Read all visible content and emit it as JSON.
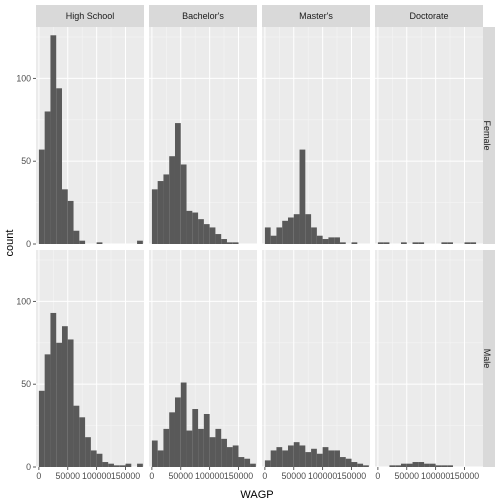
{
  "chart_data": {
    "type": "histogram",
    "xlabel": "WAGP",
    "ylabel": "count",
    "column_facets": [
      "High School",
      "Bachelor's",
      "Master's",
      "Doctorate"
    ],
    "row_facets": [
      "Female",
      "Male"
    ],
    "xlim": [
      -5000,
      182000
    ],
    "ylim": [
      0,
      131
    ],
    "x_ticks": [
      0,
      50000,
      100000,
      150000
    ],
    "x_tick_labels": [
      "0",
      "50000",
      "100000",
      "150000"
    ],
    "y_ticks": [
      0,
      50,
      100
    ],
    "y_tick_labels": [
      "0",
      "50",
      "100"
    ],
    "bin_width": 10000,
    "bin_starts": [
      0,
      10000,
      20000,
      30000,
      40000,
      50000,
      60000,
      70000,
      80000,
      90000,
      100000,
      110000,
      120000,
      130000,
      140000,
      150000,
      160000,
      170000
    ],
    "panels": [
      {
        "row": "Female",
        "col": "High School",
        "counts": [
          57,
          80,
          126,
          94,
          33,
          26,
          8,
          2,
          0,
          0,
          1,
          0,
          0,
          0,
          0,
          0,
          0,
          2
        ]
      },
      {
        "row": "Female",
        "col": "Bachelor's",
        "counts": [
          33,
          38,
          42,
          53,
          73,
          48,
          20,
          19,
          15,
          12,
          10,
          6,
          3,
          1,
          1,
          0,
          0,
          0
        ]
      },
      {
        "row": "Female",
        "col": "Master's",
        "counts": [
          10,
          5,
          10,
          14,
          16,
          18,
          57,
          18,
          10,
          5,
          3,
          4,
          4,
          1,
          0,
          1,
          0,
          0
        ]
      },
      {
        "row": "Female",
        "col": "Doctorate",
        "counts": [
          1,
          1,
          0,
          0,
          1,
          0,
          1,
          1,
          0,
          0,
          0,
          1,
          1,
          0,
          0,
          1,
          1,
          0
        ]
      },
      {
        "row": "Male",
        "col": "High School",
        "counts": [
          46,
          68,
          93,
          75,
          85,
          77,
          37,
          30,
          18,
          10,
          8,
          3,
          2,
          1,
          1,
          2,
          0,
          2
        ]
      },
      {
        "row": "Male",
        "col": "Bachelor's",
        "counts": [
          16,
          10,
          23,
          33,
          42,
          51,
          22,
          35,
          23,
          32,
          18,
          23,
          17,
          12,
          13,
          6,
          5,
          2
        ]
      },
      {
        "row": "Male",
        "col": "Master's",
        "counts": [
          4,
          10,
          12,
          10,
          13,
          15,
          13,
          9,
          11,
          8,
          12,
          10,
          10,
          6,
          5,
          3,
          2,
          1
        ]
      },
      {
        "row": "Male",
        "col": "Doctorate",
        "counts": [
          0,
          0,
          1,
          1,
          2,
          2,
          3,
          3,
          2,
          2,
          1,
          1,
          1,
          0,
          0,
          0,
          0,
          0
        ]
      }
    ],
    "colors": {
      "bar": "#595959",
      "panel": "#ebebeb",
      "strip": "#d9d9d9",
      "grid": "#ffffff"
    },
    "grid": true,
    "legend": "none"
  }
}
